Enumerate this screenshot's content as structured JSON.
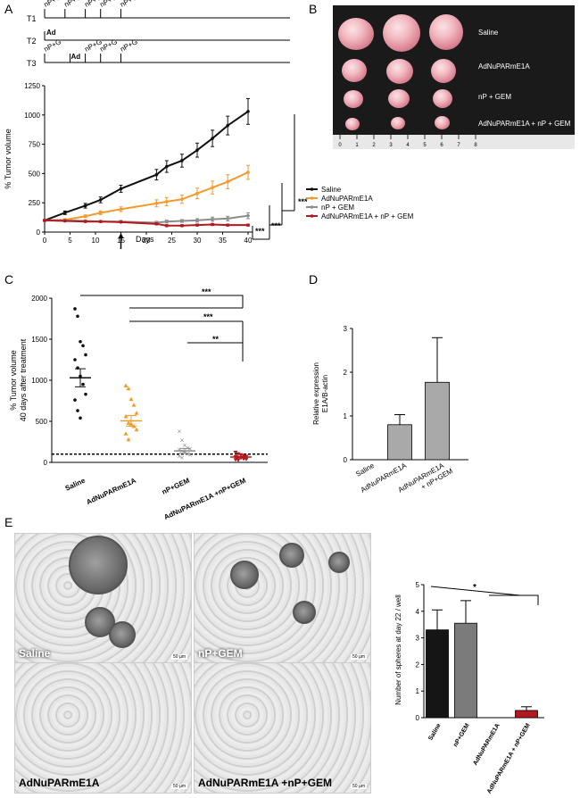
{
  "panel_letters": {
    "a": "A",
    "b": "B",
    "c": "C",
    "d": "D",
    "e": "E"
  },
  "schedule": {
    "rows": [
      "T1",
      "T2",
      "T3"
    ],
    "t1_marks": [
      "nP+G",
      "nP+G",
      "nP+G",
      "nP+G",
      "nP+G"
    ],
    "t2_marks": [
      "Ad"
    ],
    "t3_marks": [
      "nP+G",
      "Ad",
      "nP+G",
      "nP+G",
      "nP+G"
    ]
  },
  "legend_a": [
    "Saline",
    "AdNuPARmE1A",
    "nP + GEM",
    "AdNuPARmE1A + nP + GEM"
  ],
  "sig_a": [
    "***",
    "***",
    "***"
  ],
  "sig_c": [
    "***",
    "***",
    "**"
  ],
  "sig_e": [
    "*"
  ],
  "photo_labels": [
    "Saline",
    "AdNuPARmE1A",
    "nP + GEM",
    "AdNuPARmE1A + nP + GEM"
  ],
  "ruler_numbers": [
    "0",
    "1",
    "2",
    "3",
    "4",
    "5",
    "6",
    "7",
    "8"
  ],
  "micrographs": [
    "Saline",
    "nP+GEM",
    "AdNuPARmE1A",
    "AdNuPARmE1A +nP+GEM"
  ],
  "micro_scale": "50 µm",
  "colors": {
    "saline": "#111111",
    "ad": "#f39a2c",
    "np": "#8c8c8c",
    "combo": "#b3181f",
    "bar_saline": "#151515",
    "bar_np": "#7b7b7b",
    "bar_combo": "#b3181f",
    "bar_d": "#a9a9a9"
  },
  "chart_data": [
    {
      "type": "line",
      "ylabel": "% Tumor volume",
      "xlabel": "Days",
      "xlim": [
        0,
        40
      ],
      "ylim": [
        0,
        1250
      ],
      "xticks": [
        "0",
        "5",
        "10",
        "15",
        "20",
        "25",
        "30",
        "35",
        "40"
      ],
      "yticks": [
        "0",
        "250",
        "500",
        "750",
        "1000",
        "1250"
      ],
      "series": [
        {
          "name": "Saline",
          "x": [
            0,
            4,
            8,
            11,
            15,
            22,
            24,
            27,
            30,
            33,
            36,
            40
          ],
          "y": [
            100,
            165,
            225,
            275,
            370,
            490,
            560,
            610,
            700,
            800,
            910,
            1030
          ],
          "err": [
            10,
            15,
            20,
            25,
            30,
            45,
            50,
            55,
            60,
            70,
            80,
            110
          ]
        },
        {
          "name": "AdNuPARmE1A",
          "x": [
            0,
            4,
            8,
            11,
            15,
            22,
            24,
            27,
            30,
            33,
            36,
            40
          ],
          "y": [
            100,
            105,
            135,
            165,
            195,
            245,
            260,
            280,
            330,
            380,
            430,
            510
          ],
          "err": [
            10,
            10,
            12,
            15,
            20,
            30,
            35,
            35,
            45,
            55,
            60,
            60
          ]
        },
        {
          "name": "nP + GEM",
          "x": [
            0,
            4,
            8,
            11,
            15,
            22,
            24,
            27,
            30,
            33,
            36,
            40
          ],
          "y": [
            100,
            100,
            95,
            90,
            90,
            80,
            90,
            95,
            100,
            110,
            115,
            140
          ],
          "err": [
            5,
            8,
            8,
            8,
            10,
            12,
            12,
            12,
            15,
            18,
            20,
            25
          ]
        },
        {
          "name": "AdNuPARmE1A + nP + GEM",
          "x": [
            0,
            4,
            8,
            11,
            15,
            22,
            24,
            27,
            30,
            33,
            36,
            40
          ],
          "y": [
            100,
            95,
            90,
            90,
            85,
            70,
            55,
            55,
            60,
            65,
            60,
            60
          ],
          "err": [
            5,
            5,
            5,
            5,
            5,
            8,
            8,
            8,
            8,
            8,
            8,
            8
          ]
        }
      ]
    },
    {
      "type": "scatter",
      "ylabel": "% Tumor volume\n40 days after treatment",
      "ylim": [
        0,
        2000
      ],
      "yticks": [
        "0",
        "500",
        "1000",
        "1500",
        "2000"
      ],
      "categories": [
        "Saline",
        "AdNuPARmE1A",
        "nP+GEM",
        "AdNuPARmE1A +nP+GEM"
      ],
      "means": [
        1030,
        505,
        140,
        65
      ],
      "sem": [
        110,
        65,
        30,
        10
      ],
      "reference_line": 100,
      "points": [
        [
          1870,
          1780,
          1470,
          1420,
          1310,
          1250,
          1150,
          1050,
          950,
          830,
          760,
          630,
          540
        ],
        [
          935,
          900,
          770,
          700,
          600,
          560,
          480,
          470,
          440,
          400,
          350,
          280
        ],
        [
          380,
          270,
          210,
          180,
          170,
          160,
          140,
          120,
          110,
          95,
          75,
          60
        ],
        [
          120,
          100,
          90,
          80,
          70,
          65,
          55,
          50,
          40,
          35,
          30,
          25
        ]
      ]
    },
    {
      "type": "bar",
      "ylabel": "Relative expression\nE1A/B-actin",
      "ylim": [
        0,
        3
      ],
      "yticks": [
        "0",
        "1",
        "2",
        "3"
      ],
      "categories": [
        "Saline",
        "AdNuPARmE1A",
        "AdNuPARmE1A\n+ nP+GEM"
      ],
      "values": [
        0,
        0.8,
        1.77
      ],
      "err": [
        0,
        0.23,
        1.02
      ]
    },
    {
      "type": "bar",
      "ylabel": "Number of spheres at day 22 / well",
      "ylim": [
        0,
        5
      ],
      "yticks": [
        "0",
        "1",
        "2",
        "3",
        "4",
        "5"
      ],
      "categories": [
        "Saline",
        "nP+GEM",
        "AdNuPARmE1A",
        "AdNuPARmE1A + nP+GEM"
      ],
      "values": [
        3.3,
        3.55,
        0,
        0.27
      ],
      "err": [
        0.75,
        0.85,
        0,
        0.14
      ]
    }
  ]
}
